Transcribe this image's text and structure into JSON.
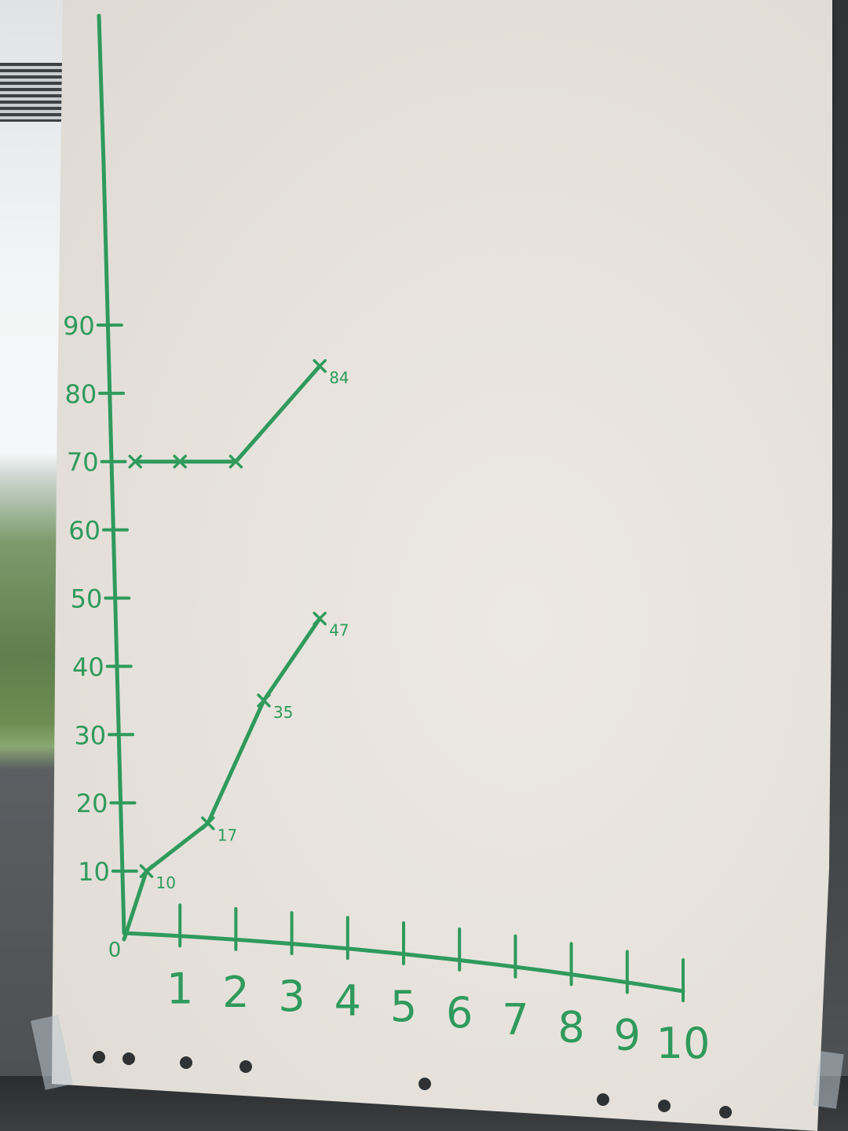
{
  "chart_data": {
    "type": "line",
    "title": "",
    "xlabel": "",
    "ylabel": "",
    "x_ticks": [
      "0",
      "1",
      "2",
      "3",
      "4",
      "5",
      "6",
      "7",
      "8",
      "9",
      "10"
    ],
    "y_ticks": [
      "10",
      "20",
      "30",
      "40",
      "50",
      "60",
      "70",
      "80",
      "90"
    ],
    "xlim": [
      0,
      10
    ],
    "ylim": [
      0,
      100
    ],
    "grid": false,
    "series": [
      {
        "values": [
          {
            "x": 0,
            "y": 0
          },
          {
            "x": 0.4,
            "y": 10
          },
          {
            "x": 1.5,
            "y": 17
          },
          {
            "x": 2.5,
            "y": 35
          },
          {
            "x": 3.5,
            "y": 47
          }
        ],
        "point_labels": [
          "",
          "10",
          "17",
          "35",
          "47"
        ]
      },
      {
        "values": [
          {
            "x": 0.2,
            "y": 70
          },
          {
            "x": 1,
            "y": 70
          },
          {
            "x": 2,
            "y": 70
          },
          {
            "x": 3.5,
            "y": 84
          }
        ],
        "point_labels": [
          "",
          "",
          "",
          "84"
        ]
      }
    ],
    "colors": {
      "ink": "#2f9a5c"
    }
  }
}
